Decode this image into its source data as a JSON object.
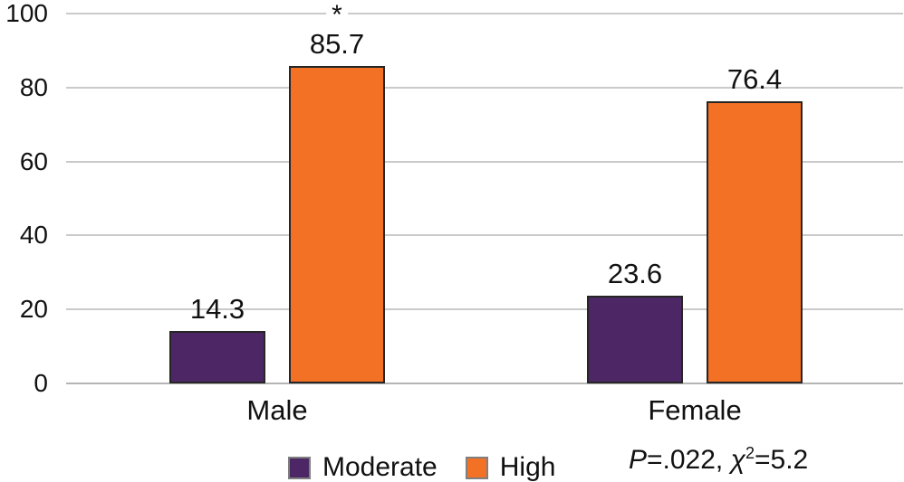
{
  "chart_data": {
    "type": "bar",
    "categories": [
      "Male",
      "Female"
    ],
    "series": [
      {
        "name": "Moderate",
        "values": [
          14.3,
          23.6
        ],
        "color": "#4D2765"
      },
      {
        "name": "High",
        "values": [
          85.7,
          76.4
        ],
        "color": "#F37124"
      }
    ],
    "ylim": [
      0,
      100
    ],
    "y_ticks": [
      0,
      20,
      40,
      60,
      80,
      100
    ],
    "grid": true,
    "legend_position": "bottom-center",
    "significance_marker": {
      "symbol": "*",
      "category": "Male",
      "series": "High"
    },
    "stats_annotation": "P=.022, χ²=5.2"
  },
  "legend": {
    "items": [
      {
        "label": "Moderate",
        "color": "#4D2765"
      },
      {
        "label": "High",
        "color": "#F37124"
      }
    ]
  },
  "annotation": {
    "p_symbol": "P",
    "p_text": "=.022, ",
    "chi_symbol": "χ",
    "chi_exponent": "2",
    "chi_text": "=5.2"
  },
  "colors": {
    "moderate": "#4D2765",
    "high": "#F37124",
    "bar_border": "#262626",
    "gridline": "#CACACA",
    "baseline": "#B5B5B5",
    "text": "#111111"
  }
}
